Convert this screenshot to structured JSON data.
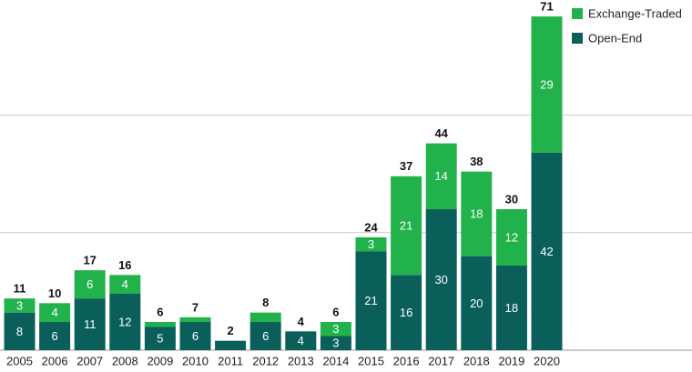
{
  "chart_data": {
    "type": "stacked-bar",
    "categories": [
      "2005",
      "2006",
      "2007",
      "2008",
      "2009",
      "2010",
      "2011",
      "2012",
      "2013",
      "2014",
      "2015",
      "2016",
      "2017",
      "2018",
      "2019",
      "2020"
    ],
    "series": [
      {
        "name": "Open-End",
        "color": "#0a5f5b",
        "values": [
          8,
          6,
          11,
          12,
          5,
          6,
          2,
          6,
          4,
          3,
          21,
          16,
          30,
          20,
          18,
          42
        ]
      },
      {
        "name": "Exchange-Traded",
        "color": "#22b24c",
        "values": [
          3,
          4,
          6,
          4,
          1,
          1,
          0,
          2,
          0,
          3,
          3,
          21,
          14,
          18,
          12,
          29
        ]
      }
    ],
    "totals": [
      11,
      10,
      17,
      16,
      6,
      7,
      2,
      8,
      4,
      6,
      24,
      37,
      44,
      38,
      30,
      71
    ],
    "ylim": [
      0,
      74.5
    ],
    "yticks": [
      0,
      25,
      50
    ],
    "grid": true,
    "legend": "top-right"
  }
}
